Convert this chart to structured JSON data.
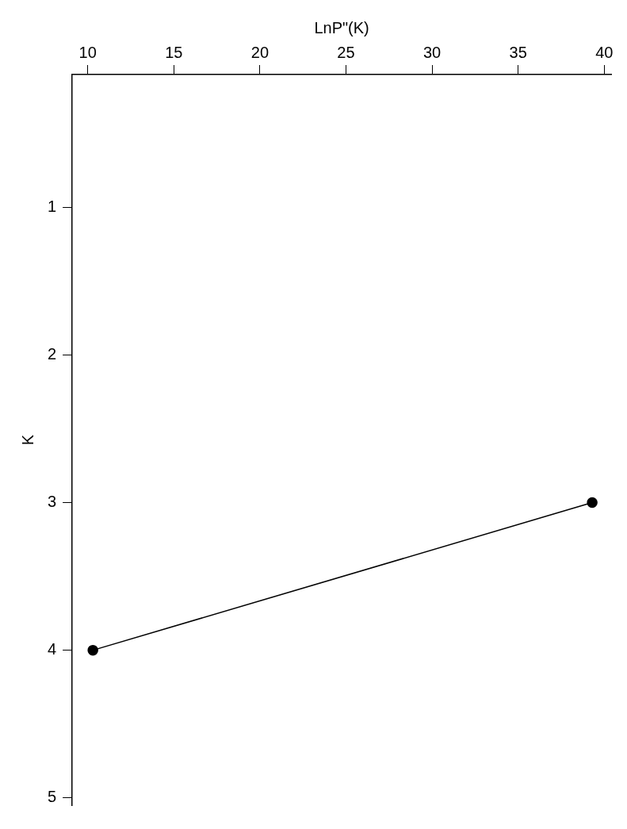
{
  "chart_data": {
    "type": "line",
    "xlabel": "LnP\"(K)",
    "ylabel": "K",
    "x": [
      39.3,
      10.3
    ],
    "series": [
      {
        "color": "#000000",
        "values": [
          3,
          4
        ]
      }
    ],
    "xlim": [
      9.1,
      40.4
    ],
    "xticks": [
      10,
      15,
      20,
      25,
      30,
      35,
      40
    ],
    "ylim": [
      5.05,
      0.1
    ],
    "yticks": [
      1,
      2,
      3,
      4,
      5
    ],
    "marker": "circle",
    "line_style": "solid"
  }
}
